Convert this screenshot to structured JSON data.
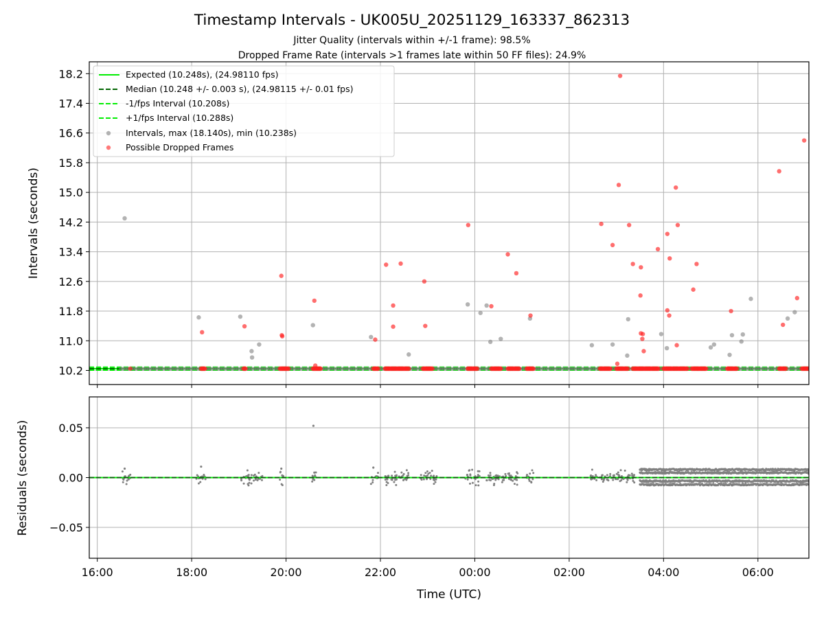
{
  "chart_data": [
    {
      "type": "scatter",
      "title": "Timestamp Intervals - UK005U_20251129_163337_862313",
      "subtitles": [
        "Jitter Quality (intervals within +/-1 frame): 98.5%",
        "Dropped Frame Rate (intervals >1 frames late within 50 FF files): 24.9%"
      ],
      "xlabel": "Time (UTC)",
      "ylabel": "Intervals (seconds)",
      "xlim": [
        15.83,
        31.08
      ],
      "ylim": [
        9.82,
        18.52
      ],
      "grid": true,
      "legend_position": "upper left",
      "x_ticks": [
        {
          "value": 16,
          "label": "16:00"
        },
        {
          "value": 18,
          "label": "18:00"
        },
        {
          "value": 20,
          "label": "20:00"
        },
        {
          "value": 22,
          "label": "22:00"
        },
        {
          "value": 24,
          "label": "00:00"
        },
        {
          "value": 26,
          "label": "02:00"
        },
        {
          "value": 28,
          "label": "04:00"
        },
        {
          "value": 30,
          "label": "06:00"
        }
      ],
      "y_ticks": [
        {
          "value": 10.2,
          "label": "10.2"
        },
        {
          "value": 11.0,
          "label": "11.0"
        },
        {
          "value": 11.8,
          "label": "11.8"
        },
        {
          "value": 12.6,
          "label": "12.6"
        },
        {
          "value": 13.4,
          "label": "13.4"
        },
        {
          "value": 14.2,
          "label": "14.2"
        },
        {
          "value": 15.0,
          "label": "15.0"
        },
        {
          "value": 15.8,
          "label": "15.8"
        },
        {
          "value": 16.6,
          "label": "16.6"
        },
        {
          "value": 17.4,
          "label": "17.4"
        },
        {
          "value": 18.2,
          "label": "18.2"
        }
      ],
      "lines": [
        {
          "name": "Expected (10.248s), (24.98110 fps)",
          "y": 10.248,
          "color": "#00ee00",
          "style": "solid"
        },
        {
          "name": "Median (10.248 +/- 0.003 s), (24.98115 +/- 0.01 fps)",
          "y": 10.248,
          "color": "#006400",
          "style": "dashed"
        },
        {
          "name": "-1/fps Interval (10.208s)",
          "y": 10.208,
          "color": "#00ee00",
          "style": "dashed"
        },
        {
          "name": "+1/fps Interval (10.288s)",
          "y": 10.288,
          "color": "#00ee00",
          "style": "dashed"
        }
      ],
      "series": [
        {
          "name": "Intervals, max (18.140s), min (10.238s)",
          "color": "#808080",
          "points": [
            [
              16.58,
              14.3
            ],
            [
              18.15,
              11.63
            ],
            [
              19.03,
              11.65
            ],
            [
              19.27,
              10.72
            ],
            [
              19.28,
              10.55
            ],
            [
              19.43,
              10.9
            ],
            [
              20.57,
              11.42
            ],
            [
              21.8,
              11.1
            ],
            [
              22.6,
              10.63
            ],
            [
              23.85,
              11.98
            ],
            [
              24.25,
              11.95
            ],
            [
              24.12,
              11.75
            ],
            [
              24.33,
              10.97
            ],
            [
              24.55,
              11.05
            ],
            [
              25.17,
              11.6
            ],
            [
              26.48,
              10.88
            ],
            [
              26.92,
              10.9
            ],
            [
              27.23,
              10.6
            ],
            [
              27.25,
              11.58
            ],
            [
              27.95,
              11.18
            ],
            [
              28.07,
              10.8
            ],
            [
              29.0,
              10.82
            ],
            [
              29.07,
              10.9
            ],
            [
              29.4,
              10.62
            ],
            [
              29.45,
              11.15
            ],
            [
              29.65,
              10.98
            ],
            [
              29.68,
              11.17
            ],
            [
              29.85,
              12.13
            ],
            [
              30.63,
              11.6
            ],
            [
              30.78,
              11.77
            ]
          ],
          "band_x": [
            16.5,
            31.08
          ],
          "band_y": 10.248
        },
        {
          "name": "Possible Dropped Frames",
          "color": "#ff2020",
          "points": [
            [
              16.7,
              10.25
            ],
            [
              18.22,
              11.23
            ],
            [
              19.12,
              11.39
            ],
            [
              19.9,
              12.75
            ],
            [
              19.91,
              11.15
            ],
            [
              19.92,
              11.12
            ],
            [
              20.6,
              12.08
            ],
            [
              20.62,
              10.33
            ],
            [
              21.89,
              11.03
            ],
            [
              22.12,
              13.05
            ],
            [
              22.27,
              11.95
            ],
            [
              22.27,
              11.38
            ],
            [
              22.43,
              13.08
            ],
            [
              22.93,
              12.6
            ],
            [
              22.95,
              11.4
            ],
            [
              23.86,
              14.12
            ],
            [
              24.35,
              11.93
            ],
            [
              24.7,
              13.33
            ],
            [
              24.88,
              12.82
            ],
            [
              25.18,
              11.68
            ],
            [
              26.68,
              14.15
            ],
            [
              26.92,
              13.58
            ],
            [
              27.05,
              15.2
            ],
            [
              27.08,
              18.14
            ],
            [
              27.27,
              14.12
            ],
            [
              27.35,
              13.07
            ],
            [
              27.52,
              12.98
            ],
            [
              27.51,
              12.22
            ],
            [
              27.52,
              11.2
            ],
            [
              27.56,
              11.18
            ],
            [
              27.55,
              11.05
            ],
            [
              27.58,
              10.72
            ],
            [
              27.02,
              10.38
            ],
            [
              27.88,
              13.47
            ],
            [
              28.08,
              13.88
            ],
            [
              28.13,
              13.22
            ],
            [
              28.08,
              11.82
            ],
            [
              28.12,
              11.68
            ],
            [
              28.26,
              15.13
            ],
            [
              28.3,
              14.12
            ],
            [
              28.28,
              10.88
            ],
            [
              28.63,
              12.38
            ],
            [
              28.7,
              13.07
            ],
            [
              29.43,
              11.8
            ],
            [
              30.45,
              15.57
            ],
            [
              30.53,
              11.43
            ],
            [
              30.83,
              12.15
            ],
            [
              30.98,
              16.4
            ]
          ],
          "baseline_y": 10.248,
          "baseline_runs": [
            [
              18.2,
              18.28
            ],
            [
              19.1,
              19.15
            ],
            [
              19.87,
              20.05
            ],
            [
              20.57,
              20.73
            ],
            [
              21.85,
              21.95
            ],
            [
              22.1,
              22.6
            ],
            [
              22.9,
              23.1
            ],
            [
              23.85,
              24.05
            ],
            [
              24.35,
              24.55
            ],
            [
              24.7,
              24.95
            ],
            [
              25.1,
              25.25
            ],
            [
              26.65,
              26.88
            ],
            [
              27.0,
              27.25
            ],
            [
              27.35,
              27.9
            ],
            [
              28.0,
              28.5
            ],
            [
              28.6,
              28.9
            ],
            [
              29.35,
              29.55
            ],
            [
              30.45,
              30.6
            ],
            [
              30.93,
              31.08
            ]
          ]
        }
      ]
    },
    {
      "type": "scatter",
      "xlabel": "Time (UTC)",
      "ylabel": "Residuals (seconds)",
      "xlim": [
        15.83,
        31.08
      ],
      "ylim": [
        -0.081,
        0.081
      ],
      "grid": true,
      "x_ticks": [
        {
          "value": 16,
          "label": "16:00"
        },
        {
          "value": 18,
          "label": "18:00"
        },
        {
          "value": 20,
          "label": "20:00"
        },
        {
          "value": 22,
          "label": "22:00"
        },
        {
          "value": 24,
          "label": "00:00"
        },
        {
          "value": 26,
          "label": "02:00"
        },
        {
          "value": 28,
          "label": "04:00"
        },
        {
          "value": 30,
          "label": "06:00"
        }
      ],
      "y_ticks": [
        {
          "value": 0.05,
          "label": "0.05"
        },
        {
          "value": 0.0,
          "label": "0.00"
        },
        {
          "value": -0.05,
          "label": "−0.05"
        }
      ],
      "lines": [
        {
          "name": "zero",
          "y": 0.0,
          "color": "#00ee00",
          "style": "solid"
        },
        {
          "name": "median",
          "y": 0.0,
          "color": "#006400",
          "style": "dashed"
        }
      ],
      "series": [
        {
          "name": "Residuals",
          "color": "#808080",
          "points": [
            [
              20.58,
              0.052
            ],
            [
              16.58,
              0.009
            ],
            [
              18.2,
              0.011
            ],
            [
              19.9,
              0.009
            ],
            [
              21.85,
              0.01
            ],
            [
              20.6,
              0.005
            ]
          ],
          "clusters": [
            {
              "x0": 16.5,
              "x1": 16.7,
              "spread": 0.008
            },
            {
              "x0": 18.1,
              "x1": 18.3,
              "spread": 0.008
            },
            {
              "x0": 19.05,
              "x1": 19.5,
              "spread": 0.008
            },
            {
              "x0": 19.85,
              "x1": 19.95,
              "spread": 0.008
            },
            {
              "x0": 20.55,
              "x1": 20.65,
              "spread": 0.008
            },
            {
              "x0": 21.8,
              "x1": 21.95,
              "spread": 0.008
            },
            {
              "x0": 22.1,
              "x1": 22.6,
              "spread": 0.008
            },
            {
              "x0": 22.85,
              "x1": 23.2,
              "spread": 0.008
            },
            {
              "x0": 23.8,
              "x1": 24.1,
              "spread": 0.008
            },
            {
              "x0": 24.25,
              "x1": 24.95,
              "spread": 0.008
            },
            {
              "x0": 25.1,
              "x1": 25.25,
              "spread": 0.008
            },
            {
              "x0": 26.45,
              "x1": 26.6,
              "spread": 0.008
            },
            {
              "x0": 26.65,
              "x1": 27.4,
              "spread": 0.008
            }
          ],
          "dense_band": {
            "x0": 27.5,
            "x1": 31.08,
            "ymin": -0.007,
            "ymax": 0.008
          }
        }
      ]
    }
  ]
}
